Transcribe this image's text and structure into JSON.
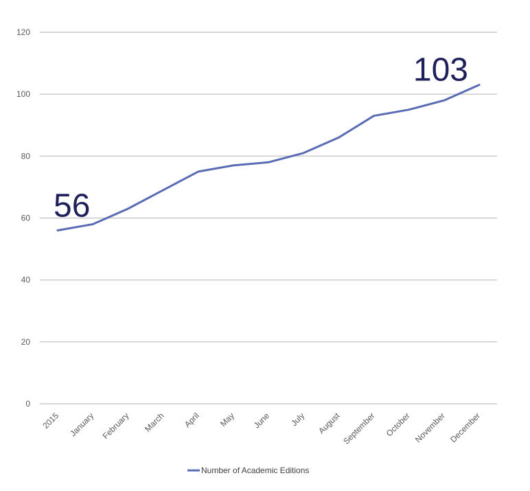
{
  "chart_data": {
    "type": "line",
    "categories": [
      "2015",
      "January",
      "February",
      "March",
      "April",
      "May",
      "June",
      "July",
      "August",
      "September",
      "October",
      "November",
      "December"
    ],
    "series": [
      {
        "name": "Number of Academic Editions",
        "values": [
          56,
          58,
          63,
          69,
          75,
          77,
          78,
          81,
          86,
          93,
          95,
          98,
          103
        ],
        "color": "#5a6bb5"
      }
    ],
    "ylim": [
      0,
      120
    ],
    "yticks": [
      0,
      20,
      40,
      60,
      80,
      100,
      120
    ],
    "grid": true,
    "legend": "bottom",
    "annotations": [
      {
        "text": "56",
        "category": "2015",
        "value": 56
      },
      {
        "text": "103",
        "category": "December",
        "value": 103
      }
    ],
    "title": "",
    "xlabel": "",
    "ylabel": ""
  }
}
